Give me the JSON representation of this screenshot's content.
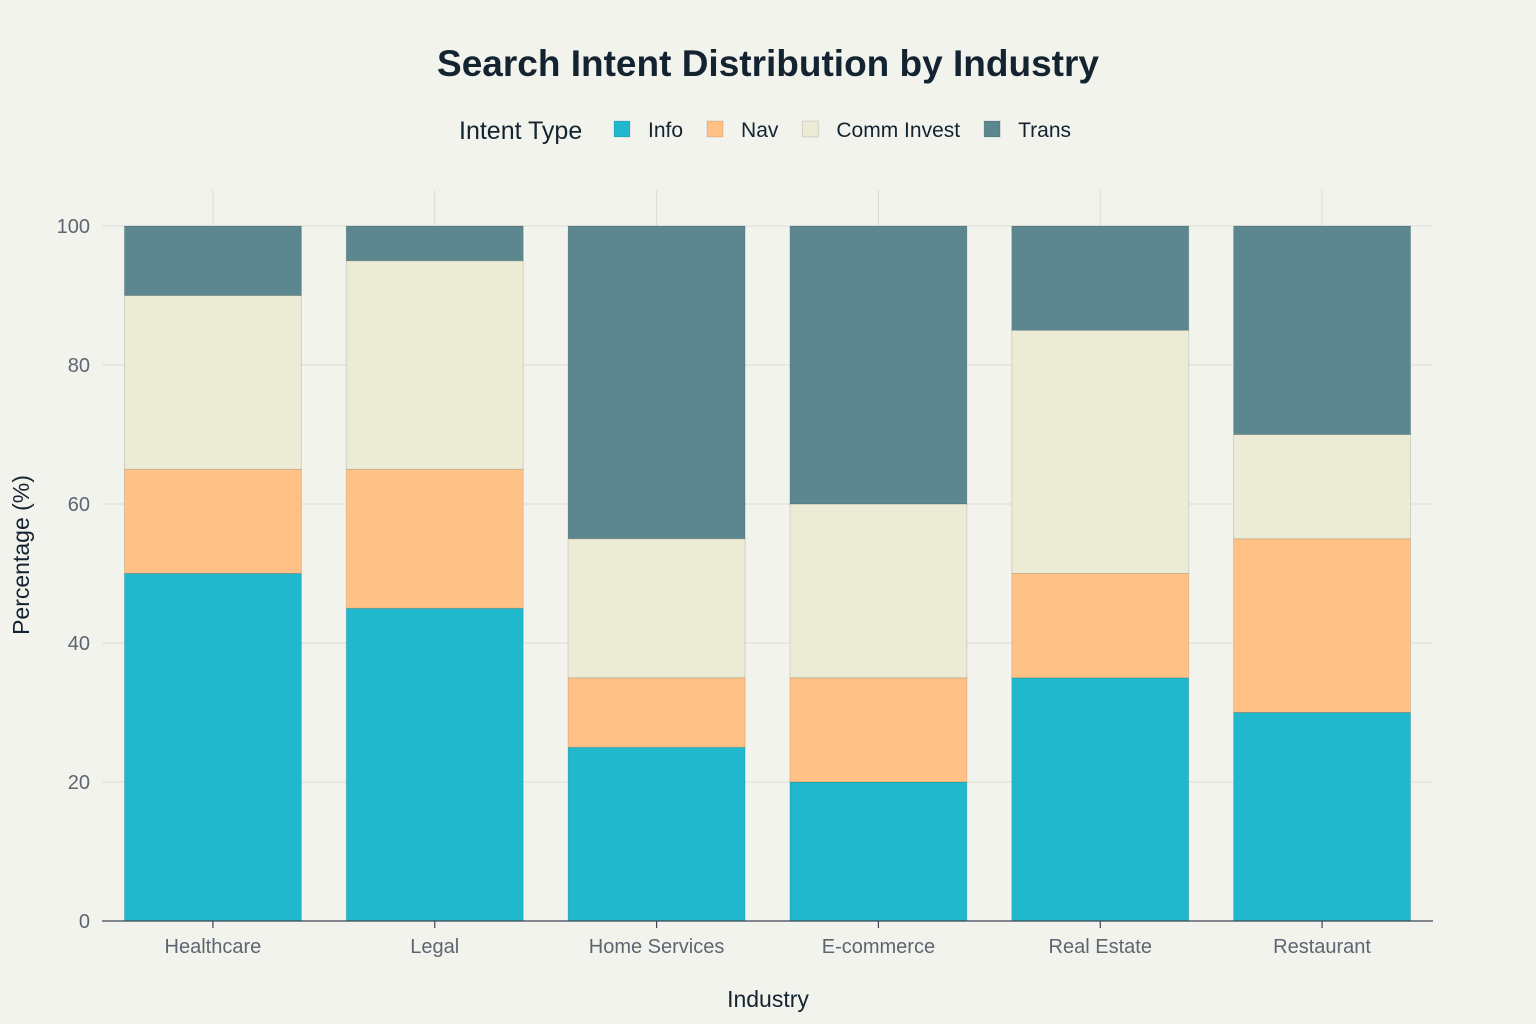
{
  "chart_data": {
    "type": "bar",
    "stacked": true,
    "title": "Search Intent Distribution by Industry",
    "xlabel": "Industry",
    "ylabel": "Percentage (%)",
    "ylim": [
      0,
      100
    ],
    "yticks": [
      0,
      20,
      40,
      60,
      80,
      100
    ],
    "grid": true,
    "legend": {
      "title": "Intent Type",
      "placement": "top"
    },
    "categories": [
      "Healthcare",
      "Legal",
      "Home Services",
      "E-commerce",
      "Real Estate",
      "Restaurant"
    ],
    "series": [
      {
        "name": "Info",
        "color": "#21b8cd",
        "values": [
          50,
          45,
          25,
          20,
          35,
          30
        ]
      },
      {
        "name": "Nav",
        "color": "#ffc185",
        "values": [
          15,
          20,
          10,
          15,
          15,
          25
        ]
      },
      {
        "name": "Comm Invest",
        "color": "#eceBd5",
        "values": [
          25,
          30,
          20,
          25,
          35,
          15
        ]
      },
      {
        "name": "Trans",
        "color": "#5d878f",
        "values": [
          10,
          5,
          45,
          40,
          15,
          30
        ]
      }
    ]
  }
}
